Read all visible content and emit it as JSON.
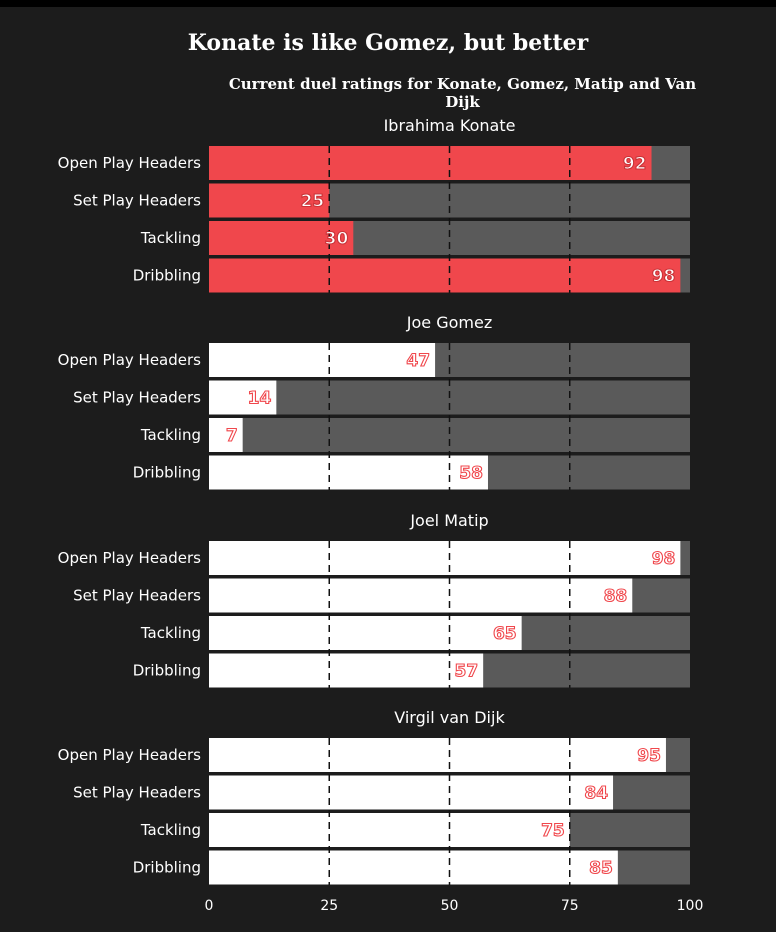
{
  "title": "Konate is like Gomez, but better",
  "subtitle": "Current duel ratings for Konate, Gomez, Matip and Van Dijk",
  "colors": {
    "background": "#1c1c1c",
    "track": "#5a5a5a",
    "highlight": "#f0474c",
    "bar": "#ffffff",
    "label_on_highlight": "#ffffff",
    "label_on_bar": "#f0474c"
  },
  "chart_data": {
    "type": "bar",
    "orientation": "horizontal",
    "categories": [
      "Open Play Headers",
      "Set Play Headers",
      "Tackling",
      "Dribbling"
    ],
    "xlim": [
      0,
      100
    ],
    "xticks": [
      0,
      25,
      50,
      75,
      100
    ],
    "gridlines": [
      25,
      50,
      75
    ],
    "grid": "dashed",
    "panels": [
      {
        "name": "Ibrahima Konate",
        "highlight": true,
        "values": [
          92,
          25,
          30,
          98
        ]
      },
      {
        "name": "Joe Gomez",
        "highlight": false,
        "values": [
          47,
          14,
          7,
          58
        ]
      },
      {
        "name": "Joel Matip",
        "highlight": false,
        "values": [
          98,
          88,
          65,
          57
        ]
      },
      {
        "name": "Virgil van Dijk",
        "highlight": false,
        "values": [
          95,
          84,
          75,
          85
        ]
      }
    ]
  }
}
